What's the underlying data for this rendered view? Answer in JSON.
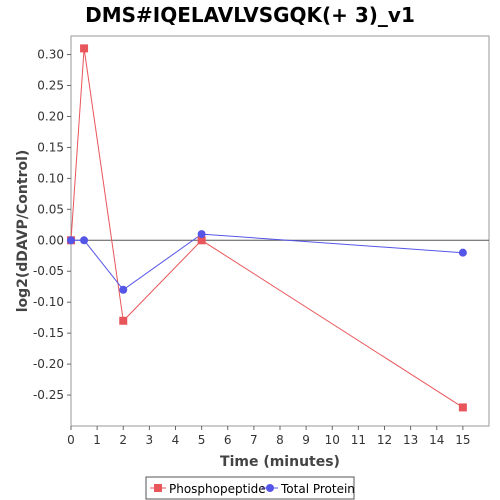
{
  "chart_data": {
    "type": "line",
    "title": "DMS#IQELAVLVSGQK(+ 3)_v1",
    "xlabel": "Time (minutes)",
    "ylabel": "log2(dDAVP/Control)",
    "xlim": [
      0,
      16
    ],
    "ylim": [
      -0.3,
      0.33
    ],
    "xticks": [
      "0",
      "1",
      "2",
      "3",
      "4",
      "5",
      "6",
      "7",
      "8",
      "9",
      "10",
      "11",
      "12",
      "13",
      "14",
      "15"
    ],
    "yticks": [
      "-0.25",
      "-0.20",
      "-0.15",
      "-0.10",
      "-0.05",
      "0.00",
      "0.05",
      "0.10",
      "0.15",
      "0.20",
      "0.25",
      "0.30"
    ],
    "grid": false,
    "legend_position": "bottom",
    "series": [
      {
        "name": "Phosphopeptide",
        "color": "#e8555a",
        "marker": "square",
        "x": [
          0,
          0.5,
          2,
          5,
          15
        ],
        "y": [
          0.0,
          0.31,
          -0.13,
          0.0,
          -0.27
        ]
      },
      {
        "name": "Total Protein",
        "color": "#5555e8",
        "marker": "circle",
        "x": [
          0,
          0.5,
          2,
          5,
          15
        ],
        "y": [
          0.0,
          0.0,
          -0.08,
          0.01,
          -0.02
        ]
      }
    ]
  }
}
